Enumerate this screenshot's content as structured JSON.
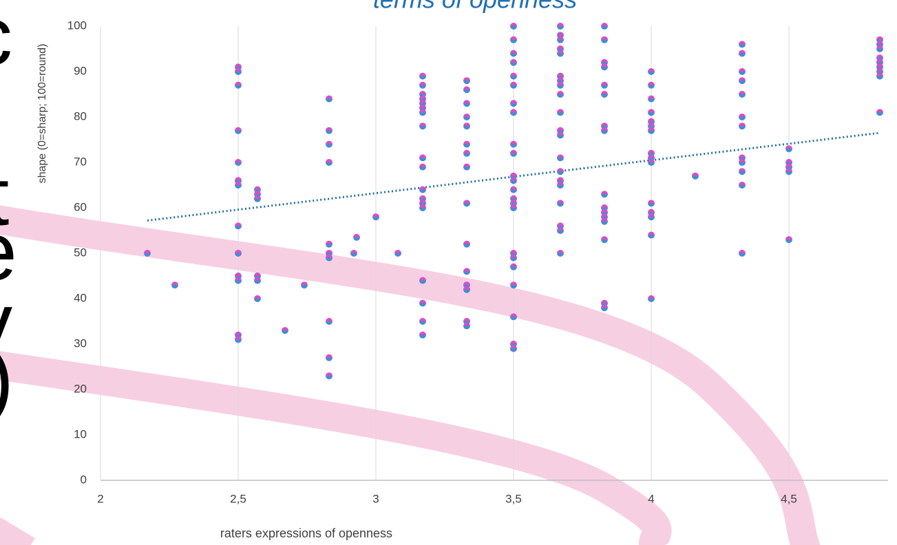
{
  "chart_data": {
    "type": "scatter",
    "title": "terms of openness",
    "x_label": "raters expressions of openness",
    "y_label": "shape (0=sharp; 100=round)",
    "side_text": [
      "c",
      "t",
      "e",
      "y",
      ")"
    ],
    "color": "#3d8fd6",
    "top_color": "#d94ec4",
    "trend_color": "#1f6fa8",
    "grid": true,
    "xlim": [
      2,
      4.86
    ],
    "ylim": [
      0,
      100
    ],
    "xticks": [
      2,
      {
        "value": 2.5,
        "label": "2,5"
      },
      3,
      {
        "value": 3.5,
        "label": "3,5"
      },
      4,
      {
        "value": 4.5,
        "label": "4,5"
      }
    ],
    "yticks": [
      0,
      10,
      20,
      30,
      40,
      50,
      60,
      70,
      80,
      90,
      100
    ],
    "x": [
      2.17,
      2.27,
      2.5,
      2.5,
      2.5,
      2.5,
      2.5,
      2.5,
      2.5,
      2.5,
      2.5,
      2.5,
      2.5,
      2.5,
      2.5,
      2.57,
      2.57,
      2.57,
      2.57,
      2.57,
      2.57,
      2.67,
      2.74,
      2.83,
      2.83,
      2.83,
      2.83,
      2.83,
      2.83,
      2.83,
      2.83,
      2.83,
      2.83,
      2.92,
      2.93,
      3,
      3.08,
      3.17,
      3.17,
      3.17,
      3.17,
      3.17,
      3.17,
      3.17,
      3.17,
      3.17,
      3.17,
      3.17,
      3.17,
      3.17,
      3.17,
      3.17,
      3.17,
      3.17,
      3.17,
      3.33,
      3.33,
      3.33,
      3.33,
      3.33,
      3.33,
      3.33,
      3.33,
      3.33,
      3.33,
      3.33,
      3.33,
      3.33,
      3.33,
      3.33,
      3.5,
      3.5,
      3.5,
      3.5,
      3.5,
      3.5,
      3.5,
      3.5,
      3.5,
      3.5,
      3.5,
      3.5,
      3.5,
      3.5,
      3.5,
      3.5,
      3.5,
      3.5,
      3.5,
      3.5,
      3.5,
      3.5,
      3.5,
      3.67,
      3.67,
      3.67,
      3.67,
      3.67,
      3.67,
      3.67,
      3.67,
      3.67,
      3.67,
      3.67,
      3.67,
      3.67,
      3.67,
      3.67,
      3.67,
      3.67,
      3.67,
      3.67,
      3.67,
      3.83,
      3.83,
      3.83,
      3.83,
      3.83,
      3.83,
      3.83,
      3.83,
      3.83,
      3.83,
      3.83,
      3.83,
      3.83,
      3.83,
      3.83,
      3.83,
      4,
      4,
      4,
      4,
      4,
      4,
      4,
      4,
      4,
      4,
      4,
      4,
      4,
      4,
      4,
      4.16,
      4.33,
      4.33,
      4.33,
      4.33,
      4.33,
      4.33,
      4.33,
      4.33,
      4.33,
      4.33,
      4.33,
      4.33,
      4.5,
      4.5,
      4.5,
      4.5,
      4.5,
      4.83,
      4.83,
      4.83,
      4.83,
      4.83,
      4.83,
      4.83,
      4.83,
      4.83
    ],
    "values": [
      50,
      43,
      91,
      90,
      87,
      77,
      70,
      66,
      65,
      56,
      50,
      45,
      44,
      32,
      31,
      64,
      63,
      62,
      45,
      44,
      40,
      33,
      43,
      84,
      77,
      74,
      70,
      52,
      50,
      49,
      35,
      27,
      23,
      50,
      53.5,
      58,
      50,
      89,
      87,
      85,
      84,
      83,
      82,
      81,
      78,
      71,
      69,
      64,
      62,
      61,
      60,
      44,
      39,
      35,
      32,
      88,
      86,
      83,
      80,
      78,
      74,
      72,
      69,
      61,
      52,
      46,
      43,
      42,
      35,
      34,
      100,
      97,
      94,
      92,
      89,
      87,
      83,
      81,
      74,
      72,
      67,
      66,
      64,
      62,
      61,
      60,
      50,
      49,
      47,
      43,
      36,
      30,
      29,
      100,
      98,
      97,
      95,
      94,
      89,
      88,
      87,
      85,
      81,
      77,
      76,
      71,
      68,
      66,
      65,
      61,
      56,
      55,
      50,
      100,
      97,
      92,
      91,
      87,
      85,
      78,
      77,
      63,
      60,
      59,
      58,
      57,
      53,
      39,
      38,
      90,
      87,
      84,
      81,
      79,
      78,
      77,
      72,
      71,
      70,
      61,
      59,
      58,
      54,
      40,
      67,
      96,
      94,
      90,
      88,
      85,
      80,
      78,
      71,
      70,
      68,
      65,
      50,
      73,
      70,
      69,
      68,
      53,
      97,
      96,
      95,
      93,
      92,
      91,
      90,
      89,
      81
    ],
    "trendline": {
      "x": [
        2.17,
        4.83
      ],
      "values": [
        57.2,
        76.5
      ]
    }
  }
}
